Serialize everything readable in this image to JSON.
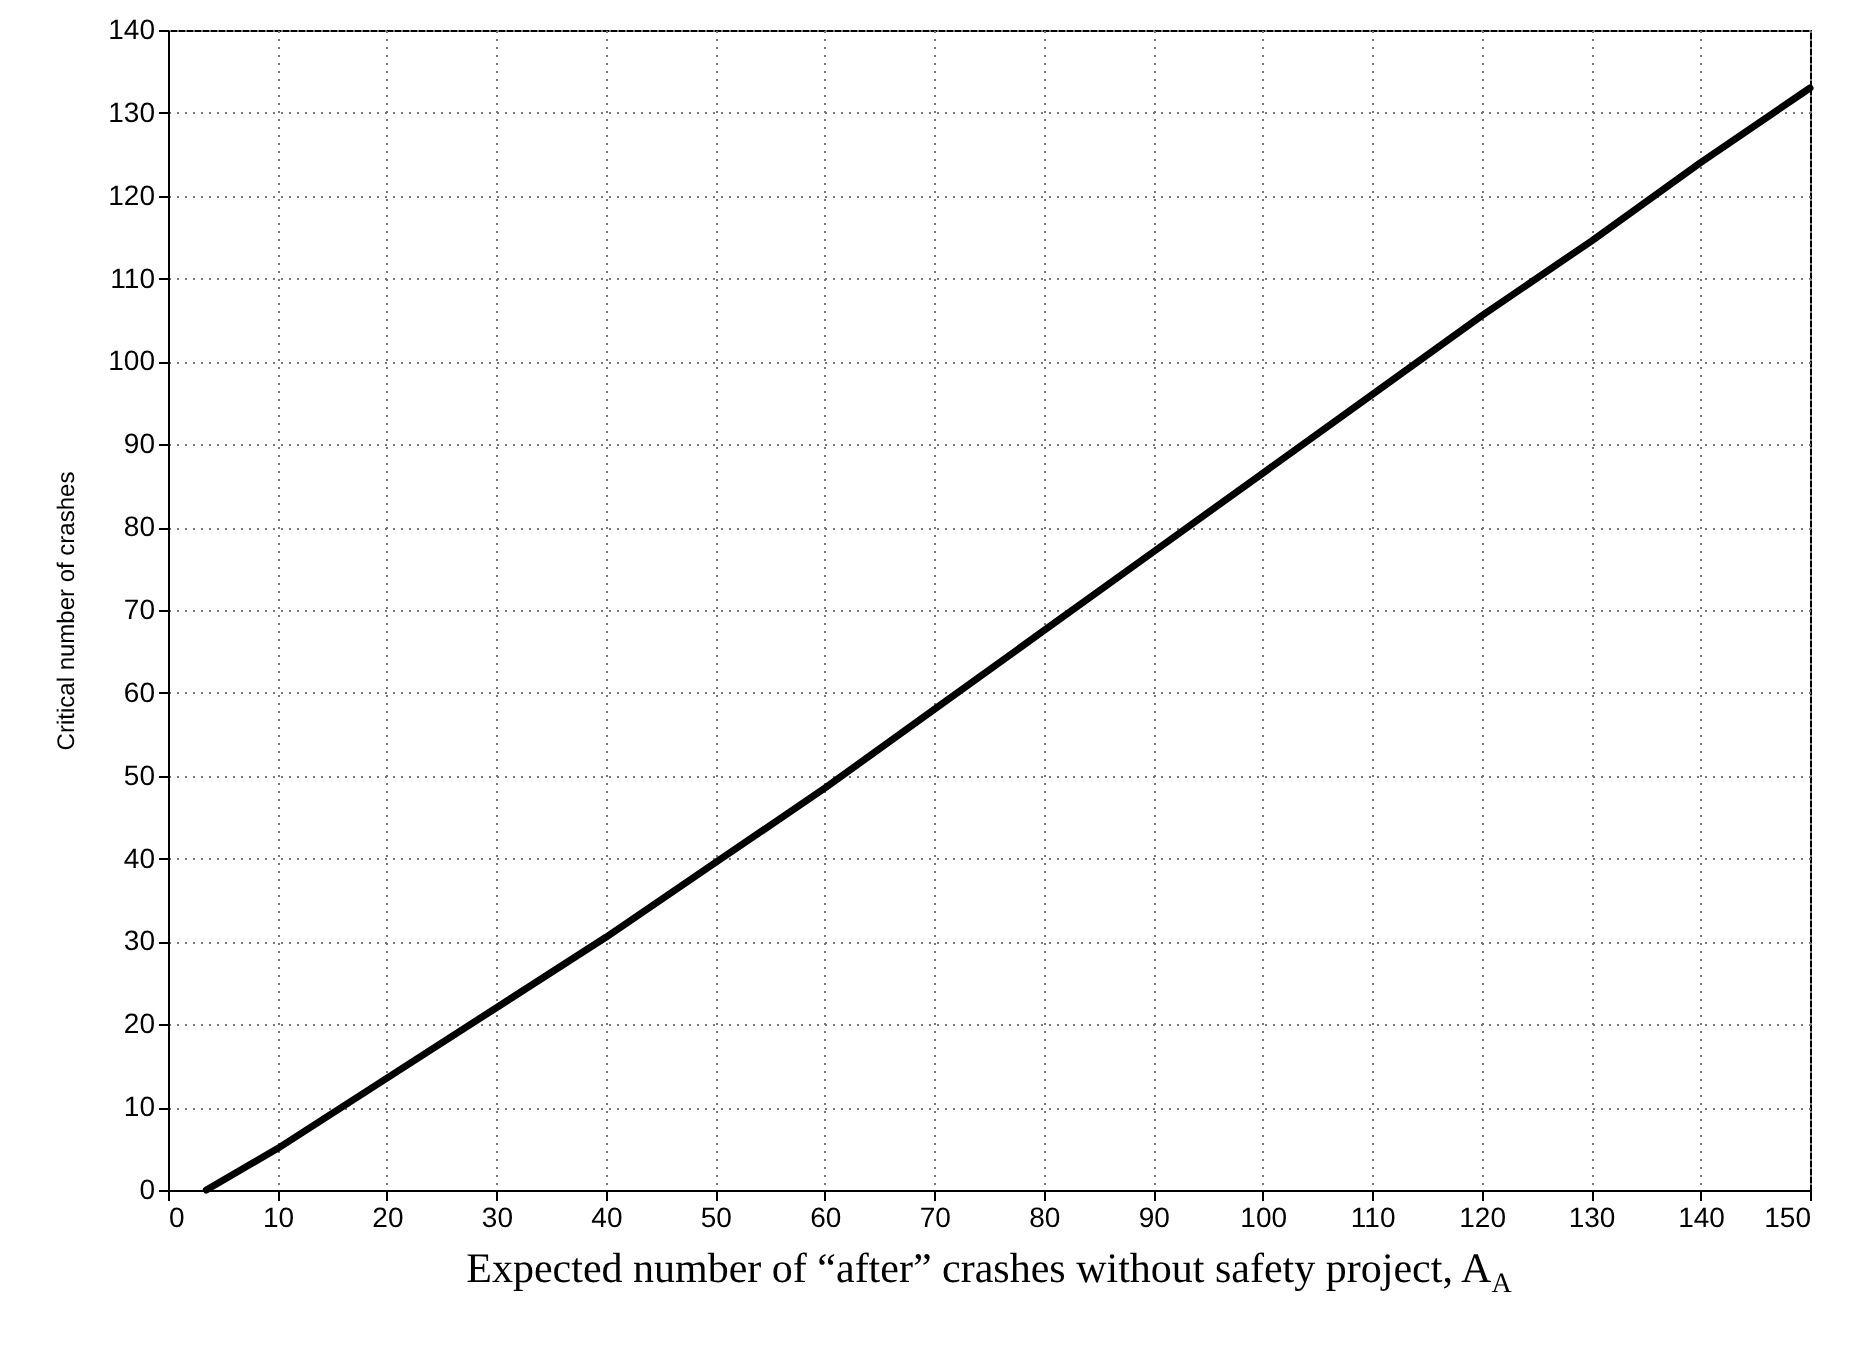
{
  "chart_data": {
    "type": "line",
    "xlabel": "Expected number of “after” crashes without safety project,  A$_{A}$",
    "ylabel": "Critical number of crashes",
    "x": [
      3.5,
      10,
      20,
      30,
      40,
      50,
      60,
      70,
      80,
      90,
      100,
      110,
      120,
      130,
      140,
      150
    ],
    "series": [
      {
        "color": "#000000",
        "values": [
          0,
          5,
          13.5,
          22,
          30.5,
          39.5,
          48.5,
          58,
          67.5,
          77,
          86.5,
          96,
          105.5,
          114.5,
          124,
          133
        ]
      }
    ],
    "xlim": [
      0,
      150
    ],
    "xticks": [
      0,
      10,
      20,
      30,
      40,
      50,
      60,
      70,
      80,
      90,
      100,
      110,
      120,
      130,
      140,
      150
    ],
    "ylim": [
      0,
      140
    ],
    "yticks": [
      0,
      10,
      20,
      30,
      40,
      50,
      60,
      70,
      80,
      90,
      100,
      110,
      120,
      130,
      140
    ],
    "grid": true,
    "marker": "none",
    "line_style": "solid"
  }
}
